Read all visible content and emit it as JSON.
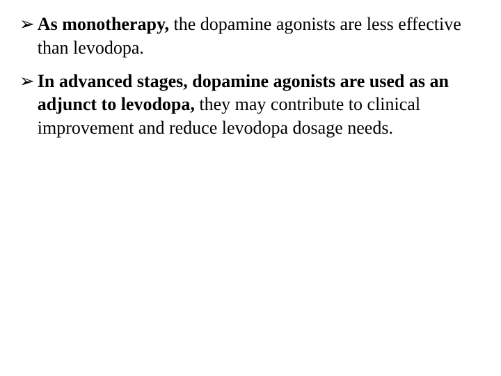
{
  "bullets": [
    {
      "marker": "➢",
      "parts": [
        {
          "text": "As monotherapy,",
          "bold": true
        },
        {
          "text": " the dopamine agonists are less effective than levodopa.",
          "bold": false
        }
      ]
    },
    {
      "marker": "➢",
      "parts": [
        {
          "text": "In advanced stages, dopamine agonists are used as an adjunct to levodopa,",
          "bold": true
        },
        {
          "text": " they  may contribute to clinical improvement and reduce levodopa dosage needs.",
          "bold": false
        }
      ]
    }
  ]
}
